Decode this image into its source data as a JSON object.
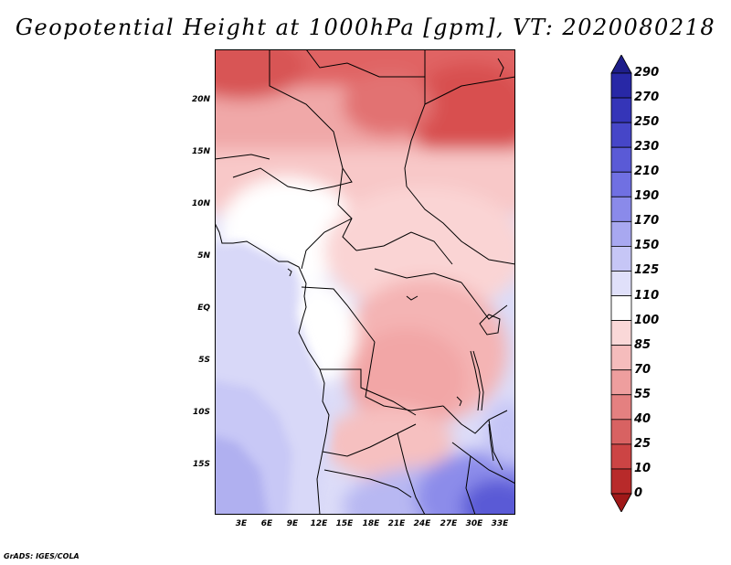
{
  "title": "Geopotential Height at 1000hPa [gpm], VT: 2020080218",
  "footer": "GrADS: IGES/COLA",
  "map": {
    "lat_labels": [
      "20N",
      "15N",
      "10N",
      "5N",
      "EQ",
      "5S",
      "10S",
      "15S"
    ],
    "lon_labels": [
      "3E",
      "6E",
      "9E",
      "12E",
      "15E",
      "18E",
      "21E",
      "24E",
      "27E",
      "30E",
      "33E"
    ]
  },
  "colorbar": {
    "labels": [
      "290",
      "270",
      "250",
      "230",
      "210",
      "190",
      "170",
      "150",
      "125",
      "110",
      "100",
      "85",
      "70",
      "55",
      "40",
      "25",
      "10",
      "0"
    ],
    "colors": [
      "#1e1e8a",
      "#2828a6",
      "#3535b8",
      "#4646c8",
      "#5a5ad6",
      "#7070e2",
      "#8a8aea",
      "#a8a8f0",
      "#c6c6f6",
      "#e0e0fa",
      "#ffffff",
      "#fad8d8",
      "#f5bcbc",
      "#ee9e9e",
      "#e48080",
      "#d86262",
      "#cc4444",
      "#b82a2a",
      "#a01818"
    ]
  }
}
